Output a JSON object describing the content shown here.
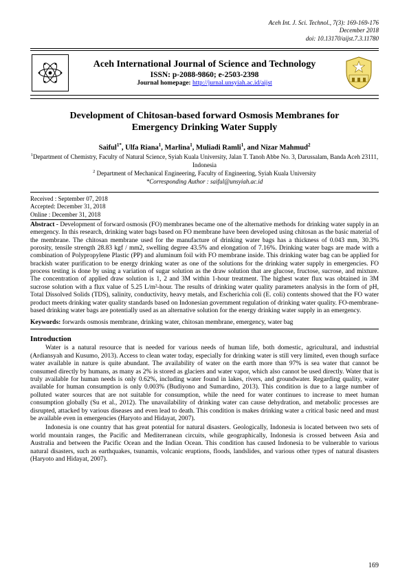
{
  "header": {
    "journal_ref": "Aceh Int. J. Sci. Technol., 7(3): 169-169-176",
    "date": "December 2018",
    "doi": "doi: 10.13170/aijst.7.3.11780"
  },
  "banner": {
    "title": "Aceh International Journal of Science and Technology",
    "issn": "ISSN: p-2088-9860; e-2503-2398",
    "homepage_label": "Journal homepage: ",
    "homepage_url": "http://jurnal.unsyiah.ac.id/aijst"
  },
  "article": {
    "title": "Development of Chitosan-based forward Osmosis Membranes for Emergency Drinking Water Supply",
    "authors_html": "Saiful<sup>1*</sup>, Ulfa Riana<sup>1</sup>, Marlina<sup>1</sup>, Muliadi Ramli<sup>1</sup>, and Nizar Mahmud<sup>2</sup>",
    "affil1": "<sup>1</sup>Department of Chemistry, Faculty of Natural Science, Syiah Kuala University, Jalan T. Tanoh Abbe No. 3, Darussalam, Banda Aceh 23111, Indonesia",
    "affil2": "<sup>2</sup> Department of Mechanical Engineering, Faculty of Engineering, Syiah Kuala University",
    "corresponding": "*Corresponding Author : saiful@unsyiah.ac.id"
  },
  "dates": {
    "received": "Received : September 07, 2018",
    "accepted": "Accepted: December 31, 2018",
    "online": "Online    : December 31, 2018"
  },
  "abstract": {
    "label": "Abstract - ",
    "text": "Development of forward osmosis (FO) membranes became one of the alternative methods for drinking water supply in an emergency. In this research, drinking water bags based on FO membrane have been developed using chitosan as the basic material of the membrane. The chitosan membrane used for the manufacture of drinking water bags has a thickness of 0.043 mm, 30.3% porosity, tensile strength 28.83 kgf / mm2, swelling degree 43.5% and elongation of 7.16%. Drinking water bags are made with a combination of Polypropylene Plastic (PP) and aluminum foil with FO membrane inside. This drinking water bag can be applied for brackish water purification to be energy drinking water as one of the solutions for the drinking water supply in emergencies. FO process testing is done by using a variation of sugar solution as the draw solution that are glucose, fructose, sucrose, and mixture. The concentration of applied draw solution is 1, 2 and 3M within 1-hour treatment. The highest water flux was obtained in 3M sucrose solution with a flux value of 5.25 L/m²-hour. The results of drinking water quality parameters analysis in the form of pH, Total Dissolved Solids (TDS), salinity, conductivity, heavy metals, and Escherichia coli (E. coli) contents showed that the FO water product meets drinking water quality standards based on Indonesian government regulation of drinking water quality. FO-membrane-based drinking water bags are potentially used as an alternative solution for the energy drinking water supply in an emergency."
  },
  "keywords": {
    "label": "Keywords: ",
    "text": "forwards osmosis membrane, drinking water, chitosan membrane, emergency, water bag"
  },
  "intro": {
    "heading": "Introduction",
    "p1": "Water is a natural resource that is needed for various needs of human life, both domestic, agricultural, and industrial (Ardiansyah and Kusumo, 2013). Access to clean water today, especially for drinking water is still very limited, even though surface water available in nature is quite abundant. The availability of water on the earth more than 97% is sea water that cannot be consumed directly by humans, as many as 2% is stored as glaciers and water vapor, which also cannot be used directly. Water that is truly available for human needs is only 0.62%, including water found in lakes, rivers, and groundwater. Regarding quality, water available for human consumption is only 0.003% (Budiyono and Sumardino, 2013). This condition is due to a large number of polluted water sources that are not suitable for consumption, while the need for water continues to increase to meet human consumption globally (Su et al., 2012). The unavailability of drinking water can cause dehydration, and metabolic processes are disrupted, attacked by various diseases and even lead to death. This condition is makes drinking water a critical basic need and must be available even in emergencies (Haryoto and Hidayat, 2007).",
    "p2": "Indonesia is one country that has great potential for natural disasters.  Geologically, Indonesia is located between two sets of world mountain ranges, the Pacific and Mediterranean circuits, while geographically, Indonesia is crossed between Asia and Australia and between the Pacific Ocean and the Indian Ocean. This condition has caused Indonesia to be vulnerable to various natural disasters, such as earthquakes, tsunamis, volcanic eruptions, floods, landslides, and various other types of natural disasters (Haryoto and Hidayat, 2007)."
  },
  "page_number": "169",
  "colors": {
    "link": "#0000ee",
    "text": "#000000",
    "background": "#ffffff"
  }
}
